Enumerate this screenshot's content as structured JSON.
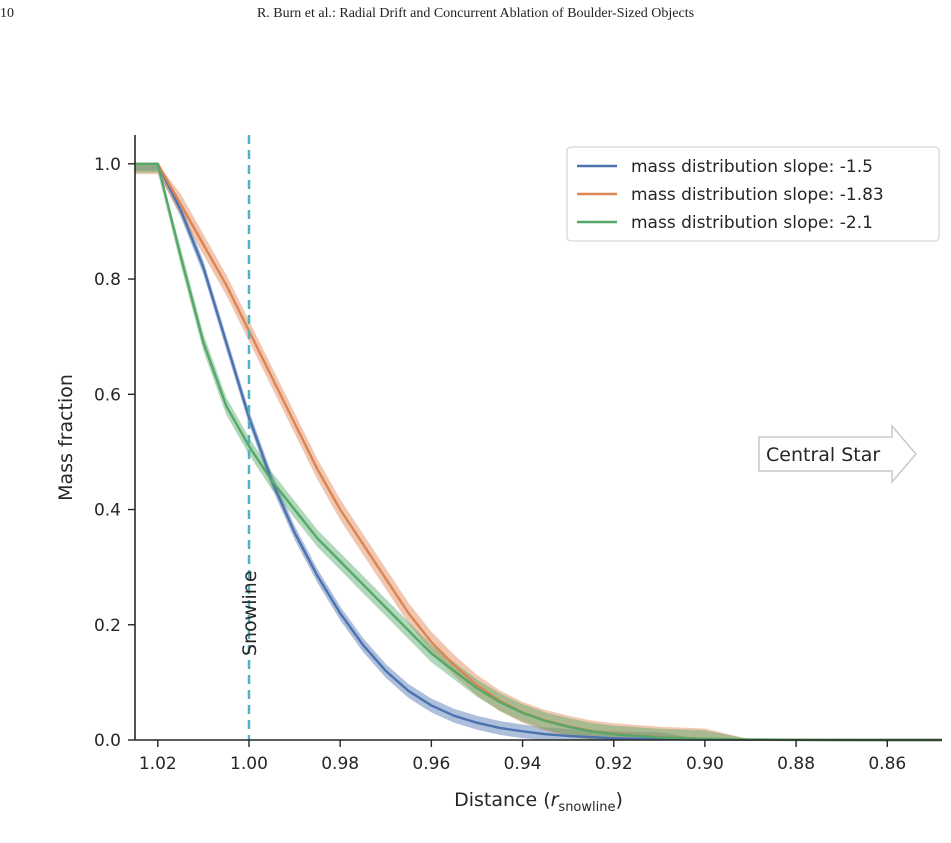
{
  "header": {
    "page_number": "10",
    "running_head": "R. Burn et al.: Radial Drift and Concurrent Ablation of Boulder-Sized Objects"
  },
  "chart_data": {
    "type": "line",
    "title": "",
    "xlabel": "Distance (",
    "xlabel_symbol": "r",
    "xlabel_subscript": "snowline",
    "xlabel_close": ")",
    "ylabel": "Mass fraction",
    "xlim": [
      1.025,
      0.848
    ],
    "ylim": [
      0.0,
      1.05
    ],
    "x_reversed": true,
    "xticks": [
      1.02,
      1.0,
      0.98,
      0.96,
      0.94,
      0.92,
      0.9,
      0.88,
      0.86
    ],
    "xtick_labels": [
      "1.02",
      "1.00",
      "0.98",
      "0.96",
      "0.94",
      "0.92",
      "0.90",
      "0.88",
      "0.86"
    ],
    "yticks": [
      0.0,
      0.2,
      0.4,
      0.6,
      0.8,
      1.0
    ],
    "ytick_labels": [
      "0.0",
      "0.2",
      "0.4",
      "0.6",
      "0.8",
      "1.0"
    ],
    "grid": false,
    "legend_position": "top-right",
    "series": [
      {
        "name": "mass distribution slope: -1.5",
        "color": "#4c72b0",
        "band": 0.012,
        "x": [
          1.025,
          1.02,
          1.015,
          1.01,
          1.005,
          1.0,
          0.995,
          0.99,
          0.985,
          0.98,
          0.975,
          0.97,
          0.965,
          0.96,
          0.955,
          0.95,
          0.945,
          0.94,
          0.935,
          0.93,
          0.92,
          0.91,
          0.9,
          0.89,
          0.88,
          0.87,
          0.86,
          0.848
        ],
        "y": [
          1.0,
          1.0,
          0.92,
          0.82,
          0.69,
          0.56,
          0.45,
          0.36,
          0.285,
          0.22,
          0.165,
          0.12,
          0.085,
          0.06,
          0.042,
          0.03,
          0.021,
          0.015,
          0.01,
          0.007,
          0.003,
          0.0015,
          0.0007,
          0.0003,
          0.0001,
          0.0,
          0.0,
          0.0
        ]
      },
      {
        "name": "mass distribution slope: -1.83",
        "color": "#dd8452",
        "band": 0.018,
        "x": [
          1.025,
          1.02,
          1.015,
          1.01,
          1.005,
          1.0,
          0.995,
          0.99,
          0.985,
          0.98,
          0.975,
          0.97,
          0.965,
          0.96,
          0.955,
          0.95,
          0.945,
          0.94,
          0.935,
          0.93,
          0.925,
          0.92,
          0.91,
          0.9,
          0.89,
          0.88,
          0.87,
          0.86,
          0.848
        ],
        "y": [
          1.0,
          1.0,
          0.93,
          0.86,
          0.79,
          0.71,
          0.63,
          0.55,
          0.47,
          0.4,
          0.34,
          0.28,
          0.22,
          0.17,
          0.13,
          0.095,
          0.068,
          0.048,
          0.034,
          0.024,
          0.016,
          0.011,
          0.005,
          0.002,
          0.0008,
          0.0003,
          0.0001,
          0.0,
          0.0
        ]
      },
      {
        "name": "mass distribution slope: -2.1",
        "color": "#55a868",
        "band": 0.015,
        "x": [
          1.025,
          1.02,
          1.015,
          1.01,
          1.005,
          1.0,
          0.995,
          0.99,
          0.985,
          0.98,
          0.975,
          0.97,
          0.965,
          0.96,
          0.955,
          0.95,
          0.945,
          0.94,
          0.935,
          0.93,
          0.925,
          0.92,
          0.91,
          0.9,
          0.89,
          0.88,
          0.87,
          0.86,
          0.848
        ],
        "y": [
          1.0,
          1.0,
          0.84,
          0.69,
          0.58,
          0.51,
          0.45,
          0.4,
          0.35,
          0.31,
          0.27,
          0.23,
          0.19,
          0.15,
          0.12,
          0.09,
          0.066,
          0.047,
          0.033,
          0.023,
          0.015,
          0.01,
          0.0045,
          0.002,
          0.0008,
          0.0003,
          0.0001,
          0.0,
          0.0
        ]
      }
    ],
    "snowline": {
      "x": 1.0,
      "label": "Snowline",
      "color": "#4fb3c4"
    },
    "annotation": {
      "text": "Central Star"
    }
  }
}
